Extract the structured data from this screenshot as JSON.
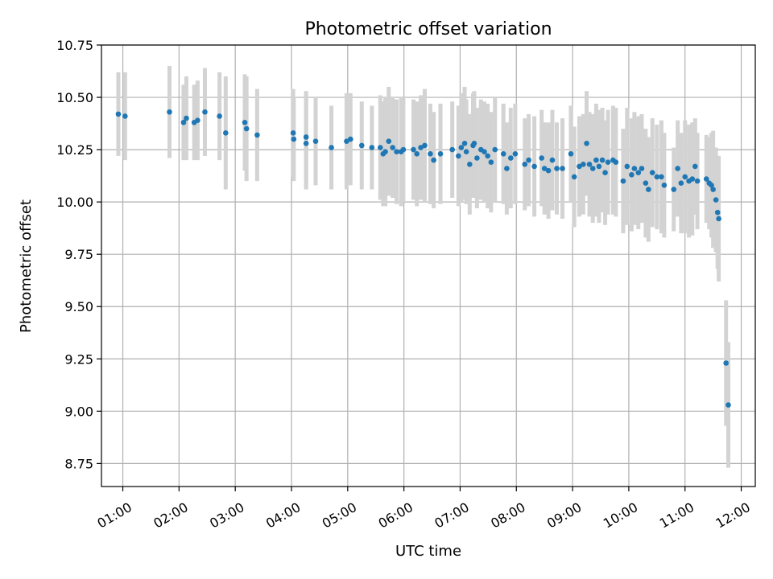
{
  "chart_data": {
    "type": "scatter",
    "title": "Photometric offset variation",
    "xlabel": "UTC time",
    "ylabel": "Photometric offset",
    "xlim": [
      0.62,
      12.25
    ],
    "ylim": [
      8.64,
      10.75
    ],
    "grid": true,
    "legend": "none",
    "x_unit": "hours UTC",
    "xticks": [
      1,
      2,
      3,
      4,
      5,
      6,
      7,
      8,
      9,
      10,
      11,
      12
    ],
    "xtick_labels": [
      "01:00",
      "02:00",
      "03:00",
      "04:00",
      "05:00",
      "06:00",
      "07:00",
      "08:00",
      "09:00",
      "10:00",
      "11:00",
      "12:00"
    ],
    "yticks": [
      8.75,
      9.0,
      9.25,
      9.5,
      9.75,
      10.0,
      10.25,
      10.5,
      10.75
    ],
    "ytick_labels": [
      "8.75",
      "9.00",
      "9.25",
      "9.50",
      "9.75",
      "10.00",
      "10.25",
      "10.50",
      "10.75"
    ],
    "colors": {
      "point": "#1f77b4",
      "errorbar": "#d3d3d3",
      "grid": "#b0b0b0"
    },
    "series": [
      {
        "x": [
          0.92,
          1.04,
          1.83,
          2.08,
          2.13,
          2.27,
          2.33,
          2.46,
          2.72,
          2.83,
          3.17,
          3.2,
          3.39,
          4.03,
          4.04,
          4.26,
          4.26,
          4.43,
          4.71,
          4.98,
          5.05,
          5.25,
          5.43,
          5.58,
          5.63,
          5.67,
          5.73,
          5.8,
          5.87,
          5.95,
          5.99,
          6.17,
          6.23,
          6.3,
          6.37,
          6.47,
          6.53,
          6.65,
          6.86,
          6.97,
          7.02,
          7.08,
          7.11,
          7.17,
          7.23,
          7.25,
          7.3,
          7.37,
          7.43,
          7.49,
          7.55,
          7.62,
          7.77,
          7.83,
          7.9,
          7.98,
          8.15,
          8.22,
          8.32,
          8.45,
          8.5,
          8.57,
          8.64,
          8.72,
          8.82,
          8.97,
          9.03,
          9.12,
          9.19,
          9.25,
          9.3,
          9.36,
          9.42,
          9.47,
          9.53,
          9.58,
          9.63,
          9.72,
          9.77,
          9.9,
          9.97,
          10.05,
          10.1,
          10.17,
          10.23,
          10.3,
          10.35,
          10.42,
          10.5,
          10.58,
          10.63,
          10.8,
          10.87,
          10.93,
          11.0,
          11.07,
          11.13,
          11.18,
          11.22,
          11.38,
          11.43,
          11.47,
          11.5,
          11.55,
          11.58,
          11.6,
          11.73,
          11.77
        ],
        "y": [
          10.42,
          10.41,
          10.43,
          10.38,
          10.4,
          10.38,
          10.39,
          10.43,
          10.41,
          10.33,
          10.38,
          10.35,
          10.32,
          10.33,
          10.3,
          10.31,
          10.28,
          10.29,
          10.26,
          10.29,
          10.3,
          10.27,
          10.26,
          10.26,
          10.23,
          10.24,
          10.29,
          10.26,
          10.24,
          10.24,
          10.25,
          10.25,
          10.23,
          10.26,
          10.27,
          10.23,
          10.2,
          10.23,
          10.25,
          10.22,
          10.26,
          10.28,
          10.24,
          10.18,
          10.27,
          10.28,
          10.21,
          10.25,
          10.24,
          10.22,
          10.19,
          10.25,
          10.23,
          10.16,
          10.21,
          10.23,
          10.18,
          10.2,
          10.17,
          10.21,
          10.16,
          10.15,
          10.2,
          10.16,
          10.16,
          10.23,
          10.12,
          10.17,
          10.18,
          10.28,
          10.18,
          10.16,
          10.2,
          10.17,
          10.2,
          10.14,
          10.19,
          10.2,
          10.19,
          10.1,
          10.17,
          10.13,
          10.16,
          10.14,
          10.16,
          10.09,
          10.06,
          10.14,
          10.12,
          10.12,
          10.08,
          10.06,
          10.16,
          10.09,
          10.12,
          10.1,
          10.11,
          10.17,
          10.1,
          10.11,
          10.09,
          10.08,
          10.06,
          10.01,
          9.95,
          9.92,
          9.23,
          9.03
        ],
        "err": [
          0.2,
          0.21,
          0.22,
          0.18,
          0.2,
          0.18,
          0.19,
          0.21,
          0.21,
          0.27,
          0.23,
          0.25,
          0.22,
          0.21,
          0.2,
          0.22,
          0.22,
          0.21,
          0.2,
          0.23,
          0.22,
          0.21,
          0.2,
          0.25,
          0.25,
          0.26,
          0.26,
          0.24,
          0.25,
          0.26,
          0.25,
          0.24,
          0.25,
          0.25,
          0.27,
          0.24,
          0.23,
          0.24,
          0.23,
          0.24,
          0.26,
          0.27,
          0.25,
          0.24,
          0.25,
          0.25,
          0.24,
          0.24,
          0.24,
          0.25,
          0.24,
          0.25,
          0.24,
          0.22,
          0.24,
          0.24,
          0.22,
          0.22,
          0.24,
          0.23,
          0.22,
          0.23,
          0.24,
          0.22,
          0.24,
          0.23,
          0.24,
          0.24,
          0.24,
          0.25,
          0.25,
          0.26,
          0.27,
          0.27,
          0.25,
          0.25,
          0.25,
          0.26,
          0.26,
          0.25,
          0.28,
          0.27,
          0.27,
          0.27,
          0.26,
          0.26,
          0.25,
          0.26,
          0.25,
          0.27,
          0.25,
          0.2,
          0.23,
          0.24,
          0.27,
          0.27,
          0.27,
          0.23,
          0.23,
          0.21,
          0.22,
          0.25,
          0.28,
          0.25,
          0.27,
          0.3,
          0.3,
          0.3
        ]
      }
    ]
  }
}
